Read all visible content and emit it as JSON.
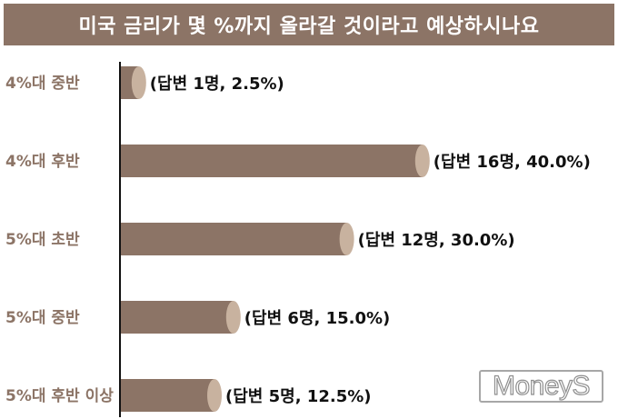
{
  "title": "미국 금리가 몇 %까지 올라갈 것이라고 예상하시나요",
  "colors": {
    "bar": "#8c7466",
    "bar_cap": "#c8b29f",
    "category_text": "#8c7466",
    "label_text": "#111111",
    "axis": "#111111"
  },
  "chart_data": {
    "type": "bar",
    "orientation": "horizontal",
    "title": "미국 금리가 몇 %까지 올라갈 것이라고 예상하시나요",
    "categories": [
      "4%대 중반",
      "4%대 후반",
      "5%대 초반",
      "5%대 중반",
      "5%대 후반 이상"
    ],
    "values": [
      2.5,
      40.0,
      30.0,
      15.0,
      12.5
    ],
    "respondents": [
      1,
      16,
      12,
      6,
      5
    ],
    "data_labels": [
      "(답변 1명, 2.5%)",
      "(답변 16명, 40.0%)",
      "(답변 12명, 30.0%)",
      "(답변 6명, 15.0%)",
      "(답변 5명, 12.5%)"
    ],
    "xlabel": "",
    "ylabel": "",
    "grid": false
  },
  "watermark": "MoneyS"
}
